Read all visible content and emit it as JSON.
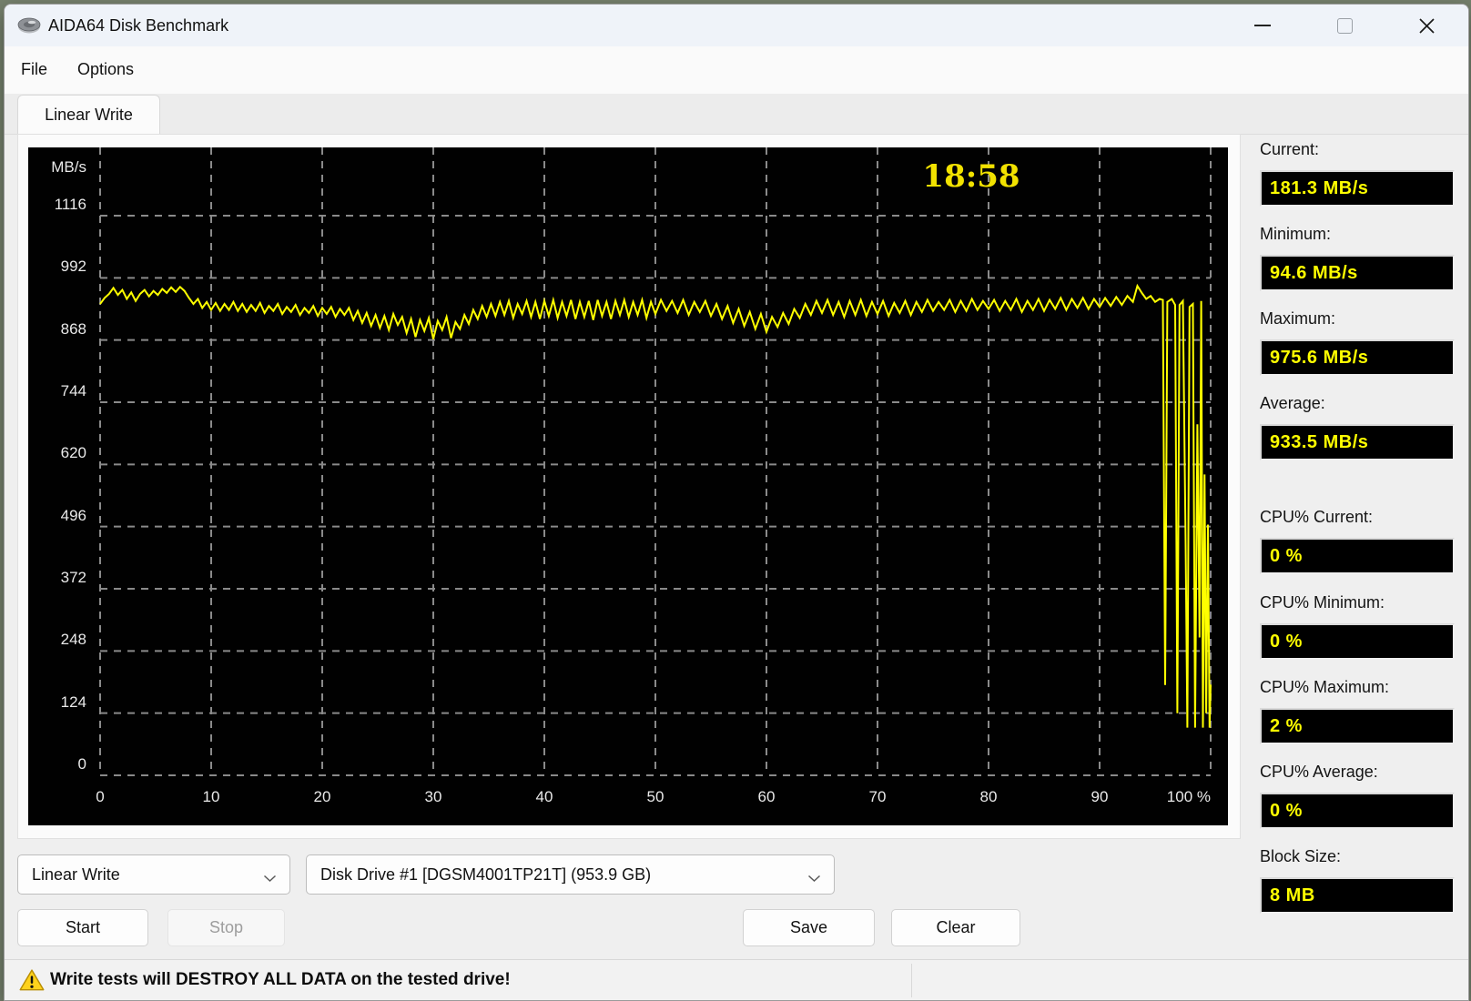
{
  "window": {
    "title": "AIDA64 Disk Benchmark"
  },
  "menu": {
    "items": [
      "File",
      "Options"
    ]
  },
  "tabs": [
    {
      "label": "Linear Write",
      "active": true
    }
  ],
  "chart_data": {
    "type": "line",
    "title": "Linear Write disk benchmark",
    "ylabel": "MB/s",
    "elapsed_time": "18:58",
    "y_ticks": [
      1116,
      992,
      868,
      744,
      620,
      496,
      372,
      248,
      124,
      0
    ],
    "x_ticks": [
      "0",
      "10",
      "20",
      "30",
      "40",
      "50",
      "60",
      "70",
      "80",
      "90",
      "100 %"
    ],
    "xlim": [
      0,
      100
    ],
    "ylim": [
      0,
      1240
    ],
    "grid": true,
    "line_color": "#ffff00",
    "grid_color": "#8a8a8a",
    "background": "#010101",
    "series": [
      {
        "name": "Linear Write MB/s",
        "points": [
          [
            0,
            940
          ],
          [
            0.4,
            952
          ],
          [
            0.8,
            960
          ],
          [
            1.2,
            972
          ],
          [
            1.6,
            958
          ],
          [
            2,
            968
          ],
          [
            2.4,
            950
          ],
          [
            2.8,
            963
          ],
          [
            3.2,
            946
          ],
          [
            3.6,
            960
          ],
          [
            4,
            968
          ],
          [
            4.4,
            955
          ],
          [
            4.8,
            966
          ],
          [
            5.2,
            958
          ],
          [
            5.6,
            970
          ],
          [
            6,
            962
          ],
          [
            6.4,
            973
          ],
          [
            6.8,
            964
          ],
          [
            7.2,
            974
          ],
          [
            7.6,
            966
          ],
          [
            8,
            952
          ],
          [
            8.4,
            940
          ],
          [
            8.8,
            950
          ],
          [
            9.2,
            932
          ],
          [
            9.6,
            944
          ],
          [
            10,
            928
          ],
          [
            10.4,
            942
          ],
          [
            10.8,
            926
          ],
          [
            11.2,
            940
          ],
          [
            11.6,
            928
          ],
          [
            12,
            944
          ],
          [
            12.4,
            926
          ],
          [
            12.8,
            940
          ],
          [
            13.2,
            924
          ],
          [
            13.6,
            938
          ],
          [
            14,
            926
          ],
          [
            14.4,
            942
          ],
          [
            14.8,
            922
          ],
          [
            15.2,
            936
          ],
          [
            15.6,
            926
          ],
          [
            16,
            940
          ],
          [
            16.4,
            920
          ],
          [
            16.8,
            934
          ],
          [
            17.2,
            924
          ],
          [
            17.6,
            938
          ],
          [
            18,
            918
          ],
          [
            18.4,
            932
          ],
          [
            18.8,
            922
          ],
          [
            19.2,
            936
          ],
          [
            19.6,
            916
          ],
          [
            20,
            932
          ],
          [
            20.4,
            920
          ],
          [
            20.8,
            934
          ],
          [
            21.2,
            914
          ],
          [
            21.6,
            930
          ],
          [
            22,
            918
          ],
          [
            22.4,
            932
          ],
          [
            22.8,
            908
          ],
          [
            23.2,
            926
          ],
          [
            23.6,
            902
          ],
          [
            24,
            922
          ],
          [
            24.4,
            896
          ],
          [
            24.8,
            918
          ],
          [
            25.2,
            892
          ],
          [
            25.6,
            916
          ],
          [
            26,
            888
          ],
          [
            26.4,
            920
          ],
          [
            26.8,
            898
          ],
          [
            27.2,
            914
          ],
          [
            27.6,
            882
          ],
          [
            28,
            910
          ],
          [
            28.4,
            874
          ],
          [
            28.8,
            908
          ],
          [
            29.2,
            886
          ],
          [
            29.6,
            912
          ],
          [
            30,
            870
          ],
          [
            30.4,
            906
          ],
          [
            30.8,
            888
          ],
          [
            31.2,
            914
          ],
          [
            31.6,
            872
          ],
          [
            32,
            904
          ],
          [
            32.4,
            890
          ],
          [
            32.8,
            918
          ],
          [
            33.2,
            900
          ],
          [
            33.6,
            928
          ],
          [
            34,
            910
          ],
          [
            34.4,
            936
          ],
          [
            34.8,
            914
          ],
          [
            35.2,
            940
          ],
          [
            35.6,
            916
          ],
          [
            36,
            944
          ],
          [
            36.4,
            918
          ],
          [
            36.8,
            946
          ],
          [
            37.2,
            912
          ],
          [
            37.6,
            940
          ],
          [
            38,
            920
          ],
          [
            38.4,
            946
          ],
          [
            38.8,
            914
          ],
          [
            39.2,
            944
          ],
          [
            39.6,
            910
          ],
          [
            40,
            946
          ],
          [
            40.4,
            916
          ],
          [
            40.8,
            948
          ],
          [
            41.2,
            912
          ],
          [
            41.6,
            944
          ],
          [
            42,
            916
          ],
          [
            42.4,
            948
          ],
          [
            42.8,
            910
          ],
          [
            43.2,
            944
          ],
          [
            43.6,
            914
          ],
          [
            44,
            946
          ],
          [
            44.4,
            908
          ],
          [
            44.8,
            948
          ],
          [
            45.2,
            916
          ],
          [
            45.6,
            944
          ],
          [
            46,
            910
          ],
          [
            46.4,
            946
          ],
          [
            46.8,
            918
          ],
          [
            47.2,
            948
          ],
          [
            47.6,
            914
          ],
          [
            48,
            944
          ],
          [
            48.4,
            918
          ],
          [
            48.8,
            948
          ],
          [
            49.2,
            912
          ],
          [
            49.6,
            944
          ],
          [
            50,
            920
          ],
          [
            50.5,
            948
          ],
          [
            51,
            926
          ],
          [
            51.5,
            946
          ],
          [
            52,
            922
          ],
          [
            52.5,
            948
          ],
          [
            53,
            918
          ],
          [
            53.5,
            944
          ],
          [
            54,
            924
          ],
          [
            54.5,
            946
          ],
          [
            55,
            916
          ],
          [
            55.5,
            940
          ],
          [
            56,
            910
          ],
          [
            56.5,
            936
          ],
          [
            57,
            902
          ],
          [
            57.5,
            930
          ],
          [
            58,
            896
          ],
          [
            58.5,
            924
          ],
          [
            59,
            890
          ],
          [
            59.5,
            920
          ],
          [
            60,
            884
          ],
          [
            60.5,
            914
          ],
          [
            61,
            894
          ],
          [
            61.5,
            922
          ],
          [
            62,
            900
          ],
          [
            62.5,
            930
          ],
          [
            63,
            912
          ],
          [
            63.5,
            940
          ],
          [
            64,
            918
          ],
          [
            64.5,
            946
          ],
          [
            65,
            922
          ],
          [
            65.5,
            948
          ],
          [
            66,
            918
          ],
          [
            66.5,
            944
          ],
          [
            67,
            914
          ],
          [
            67.5,
            946
          ],
          [
            68,
            918
          ],
          [
            68.5,
            948
          ],
          [
            69,
            916
          ],
          [
            69.5,
            944
          ],
          [
            70,
            920
          ],
          [
            70.5,
            946
          ],
          [
            71,
            916
          ],
          [
            71.5,
            942
          ],
          [
            72,
            922
          ],
          [
            72.5,
            946
          ],
          [
            73,
            918
          ],
          [
            73.5,
            944
          ],
          [
            74,
            924
          ],
          [
            74.5,
            948
          ],
          [
            75,
            926
          ],
          [
            75.5,
            944
          ],
          [
            76,
            928
          ],
          [
            76.5,
            948
          ],
          [
            77,
            924
          ],
          [
            77.5,
            946
          ],
          [
            78,
            926
          ],
          [
            78.5,
            950
          ],
          [
            79,
            928
          ],
          [
            79.5,
            946
          ],
          [
            80,
            930
          ],
          [
            80.5,
            948
          ],
          [
            81,
            926
          ],
          [
            81.5,
            946
          ],
          [
            82,
            928
          ],
          [
            82.5,
            950
          ],
          [
            83,
            924
          ],
          [
            83.5,
            946
          ],
          [
            84,
            928
          ],
          [
            84.5,
            950
          ],
          [
            85,
            926
          ],
          [
            85.5,
            948
          ],
          [
            86,
            930
          ],
          [
            86.5,
            952
          ],
          [
            87,
            928
          ],
          [
            87.5,
            950
          ],
          [
            88,
            932
          ],
          [
            88.5,
            952
          ],
          [
            89,
            930
          ],
          [
            89.5,
            950
          ],
          [
            90,
            934
          ],
          [
            90.5,
            952
          ],
          [
            91,
            936
          ],
          [
            91.5,
            954
          ],
          [
            92,
            938
          ],
          [
            92.5,
            956
          ],
          [
            93,
            944
          ],
          [
            93.4,
            976
          ],
          [
            93.8,
            962
          ],
          [
            94.2,
            950
          ],
          [
            94.6,
            956
          ],
          [
            95,
            944
          ],
          [
            95.4,
            950
          ],
          [
            95.7,
            948
          ],
          [
            95.9,
            180
          ],
          [
            96.1,
            944
          ],
          [
            96.5,
            950
          ],
          [
            96.8,
            938
          ],
          [
            97,
            124
          ],
          [
            97.2,
            938
          ],
          [
            97.5,
            946
          ],
          [
            97.75,
            460
          ],
          [
            97.9,
            95
          ],
          [
            98.1,
            934
          ],
          [
            98.4,
            940
          ],
          [
            98.6,
            95
          ],
          [
            98.8,
            700
          ],
          [
            99,
            275
          ],
          [
            99.15,
            946
          ],
          [
            99.3,
            95
          ],
          [
            99.45,
            600
          ],
          [
            99.6,
            124
          ],
          [
            99.75,
            500
          ],
          [
            99.9,
            95
          ],
          [
            100,
            181
          ]
        ]
      }
    ]
  },
  "sidebar": {
    "stats": [
      {
        "label": "Current:",
        "value": "181.3 MB/s"
      },
      {
        "label": "Minimum:",
        "value": "94.6 MB/s"
      },
      {
        "label": "Maximum:",
        "value": "975.6 MB/s"
      },
      {
        "label": "Average:",
        "value": "933.5 MB/s"
      },
      {
        "label": "CPU% Current:",
        "value": "0 %"
      },
      {
        "label": "CPU% Minimum:",
        "value": "0 %"
      },
      {
        "label": "CPU% Maximum:",
        "value": "2 %"
      },
      {
        "label": "CPU% Average:",
        "value": "0 %"
      },
      {
        "label": "Block Size:",
        "value": "8 MB"
      }
    ]
  },
  "controls": {
    "test_select": {
      "value": "Linear Write"
    },
    "drive_select": {
      "value": "Disk Drive #1  [DGSM4001TP21T]  (953.9 GB)"
    },
    "buttons": [
      {
        "label": "Start",
        "enabled": true
      },
      {
        "label": "Stop",
        "enabled": false
      },
      {
        "label": "Save",
        "enabled": true
      },
      {
        "label": "Clear",
        "enabled": true
      }
    ]
  },
  "statusbar": {
    "warning": "Write tests will DESTROY ALL DATA on the tested drive!"
  },
  "colors": {
    "accent_yellow": "#ffff00",
    "warning_yellow": "#ffd21c"
  }
}
